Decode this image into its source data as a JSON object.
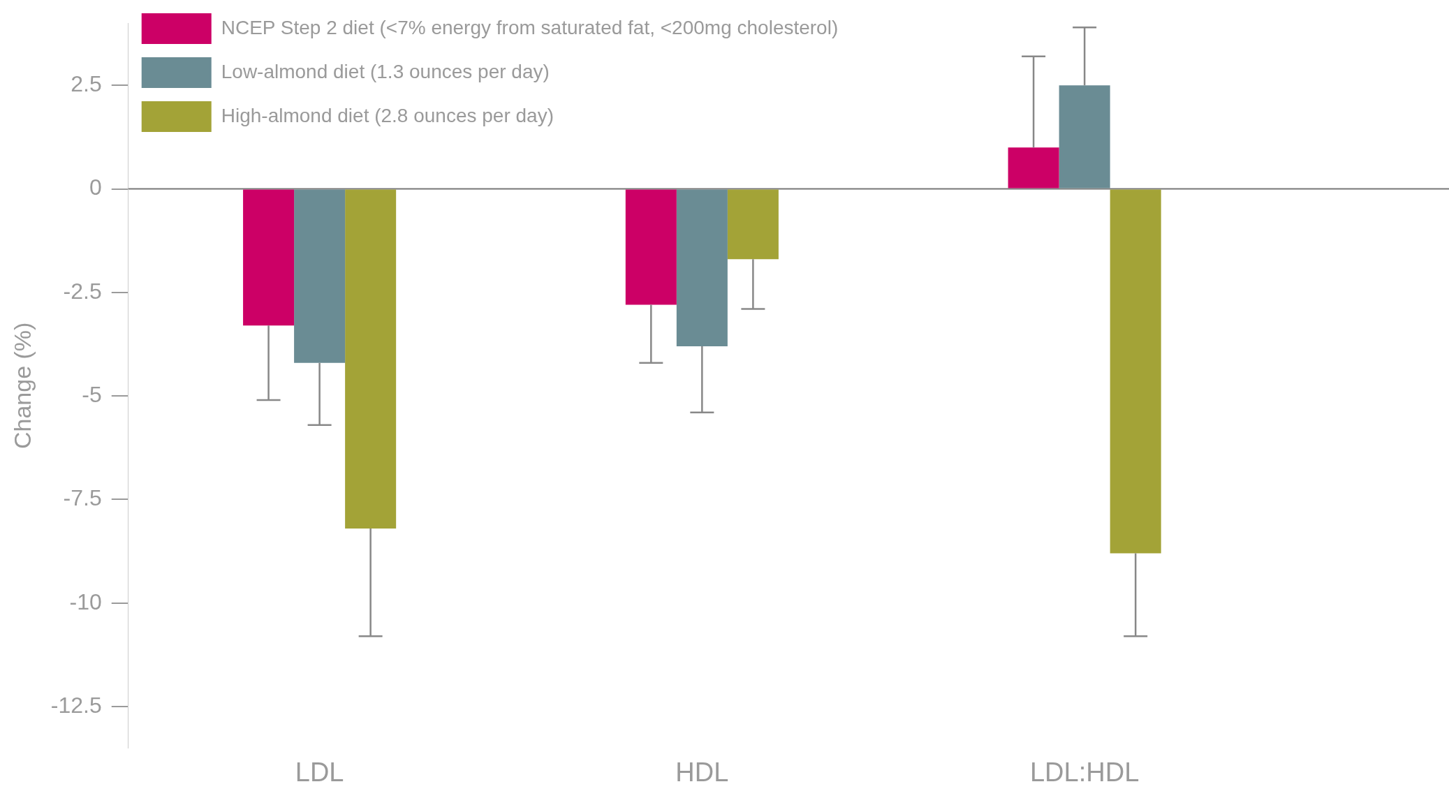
{
  "chart_data": {
    "type": "bar",
    "ylabel": "Change (%)",
    "categories": [
      "LDL",
      "HDL",
      "LDL:HDL"
    ],
    "series": [
      {
        "name": "NCEP Step 2 diet (<7% energy from saturated fat, <200mg cholesterol)",
        "color": "#cc0066",
        "values": [
          -3.3,
          -2.8,
          1.0
        ],
        "errors": [
          [
            -5.1,
            -3.3
          ],
          [
            -4.2,
            -2.8
          ],
          [
            1.0,
            3.2
          ]
        ]
      },
      {
        "name": "Low-almond diet (1.3 ounces per day)",
        "color": "#6a8c94",
        "values": [
          -4.2,
          -3.8,
          2.5
        ],
        "errors": [
          [
            -5.7,
            -4.2
          ],
          [
            -5.4,
            -3.8
          ],
          [
            2.5,
            3.9
          ]
        ]
      },
      {
        "name": "High-almond diet (2.8 ounces per day)",
        "color": "#a3a337",
        "values": [
          -8.2,
          -1.7,
          -8.8
        ],
        "errors": [
          [
            -10.8,
            -8.2
          ],
          [
            -2.9,
            -1.7
          ],
          [
            -10.8,
            -8.8
          ]
        ]
      }
    ],
    "ylim": [
      -13.5,
      4
    ],
    "yticks": [
      -12.5,
      -10,
      -7.5,
      -5,
      -2.5,
      0,
      2.5
    ],
    "ref_lines": [
      {
        "axis": "y",
        "value": 0,
        "color": "#777777"
      }
    ],
    "grid": false,
    "legend": "top left"
  }
}
